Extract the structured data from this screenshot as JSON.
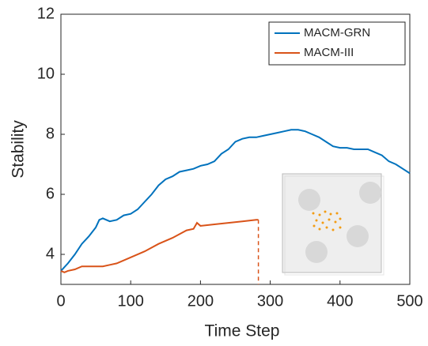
{
  "chart_data": {
    "type": "line",
    "xlabel": "Time Step",
    "ylabel": "Stability",
    "xlim": [
      0,
      500
    ],
    "ylim": [
      3,
      12
    ],
    "xticks": [
      0,
      100,
      200,
      300,
      400,
      500
    ],
    "yticks": [
      4,
      6,
      8,
      10,
      12
    ],
    "legend": "upper right",
    "series": [
      {
        "name": "MACM-GRN",
        "color": "#0072bd",
        "x": [
          0,
          10,
          20,
          30,
          40,
          50,
          55,
          60,
          70,
          80,
          90,
          100,
          110,
          120,
          130,
          140,
          150,
          160,
          170,
          180,
          190,
          200,
          210,
          220,
          230,
          240,
          250,
          260,
          270,
          280,
          290,
          300,
          310,
          320,
          330,
          340,
          350,
          360,
          370,
          380,
          390,
          400,
          410,
          420,
          430,
          440,
          450,
          460,
          470,
          480,
          490,
          500
        ],
        "values": [
          3.45,
          3.7,
          4.0,
          4.35,
          4.6,
          4.9,
          5.15,
          5.2,
          5.1,
          5.15,
          5.3,
          5.35,
          5.5,
          5.75,
          6.0,
          6.3,
          6.5,
          6.6,
          6.75,
          6.8,
          6.85,
          6.95,
          7.0,
          7.1,
          7.35,
          7.5,
          7.75,
          7.85,
          7.9,
          7.9,
          7.95,
          8.0,
          8.05,
          8.1,
          8.15,
          8.15,
          8.1,
          8.0,
          7.9,
          7.75,
          7.6,
          7.55,
          7.55,
          7.5,
          7.5,
          7.5,
          7.4,
          7.3,
          7.1,
          7.0,
          6.85,
          6.7
        ]
      },
      {
        "name": "MACM-III",
        "color": "#d95319",
        "x": [
          0,
          5,
          10,
          20,
          30,
          50,
          60,
          70,
          80,
          100,
          120,
          140,
          160,
          180,
          190,
          195,
          200,
          220,
          240,
          260,
          280,
          283
        ],
        "values": [
          3.45,
          3.4,
          3.45,
          3.5,
          3.6,
          3.6,
          3.6,
          3.65,
          3.7,
          3.9,
          4.1,
          4.35,
          4.55,
          4.8,
          4.85,
          5.05,
          4.95,
          5.0,
          5.05,
          5.1,
          5.15,
          5.15
        ]
      }
    ]
  }
}
